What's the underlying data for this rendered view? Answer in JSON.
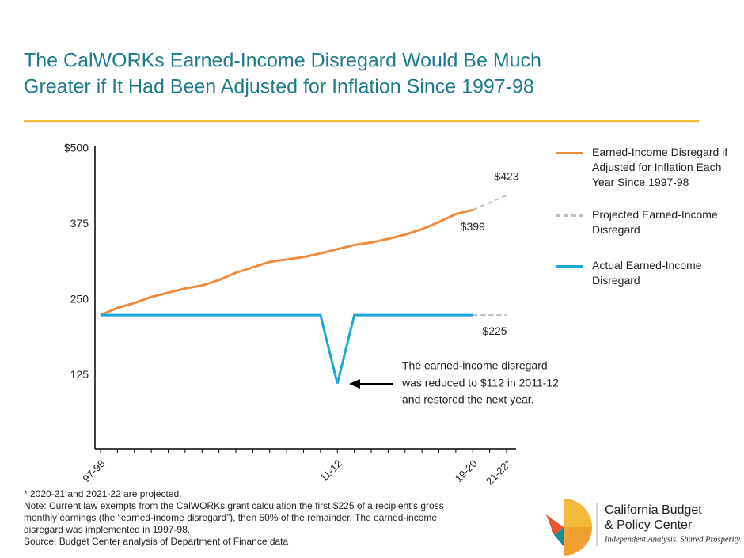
{
  "chart_data": {
    "type": "line",
    "title": [
      "The CalWORKs Earned-Income Disregard Would Be Much",
      "Greater if It Had Been Adjusted for Inflation Since 1997-98"
    ],
    "categories": [
      "97-98",
      null,
      null,
      null,
      null,
      null,
      null,
      null,
      null,
      null,
      null,
      null,
      null,
      null,
      "11-12",
      null,
      null,
      null,
      null,
      null,
      null,
      null,
      "19-20",
      null,
      "21-22*"
    ],
    "ylim": [
      0,
      500
    ],
    "yticks": [
      125,
      250,
      375,
      {
        "value": 500,
        "label": "$500"
      }
    ],
    "series": [
      {
        "name": "Earned-Income Disregard if Adjusted for Inflation Each Year Since 1997-98",
        "color": "#f08a3c",
        "dash": false,
        "values": [
          225,
          237,
          245,
          255,
          262,
          269,
          274,
          283,
          295,
          304,
          313,
          317,
          321,
          327,
          334,
          341,
          345,
          351,
          358,
          367,
          379,
          392,
          399,
          null,
          null
        ],
        "value_labels": [
          null,
          null,
          null,
          null,
          null,
          null,
          null,
          null,
          null,
          null,
          null,
          null,
          null,
          null,
          null,
          null,
          null,
          null,
          null,
          null,
          null,
          null,
          "$399",
          null,
          null
        ]
      },
      {
        "name": "Projected Earned-Income Disregard",
        "color": "#bfbfbf",
        "dash": true,
        "segments": [
          [
            null,
            null,
            null,
            null,
            null,
            null,
            null,
            null,
            null,
            null,
            null,
            null,
            null,
            null,
            null,
            null,
            null,
            null,
            null,
            null,
            null,
            null,
            399,
            411,
            423
          ],
          [
            null,
            null,
            null,
            null,
            null,
            null,
            null,
            null,
            null,
            null,
            null,
            null,
            null,
            null,
            null,
            null,
            null,
            null,
            null,
            null,
            null,
            null,
            225,
            225,
            225
          ]
        ],
        "segment_labels": [
          [
            null,
            null,
            null,
            null,
            null,
            null,
            null,
            null,
            null,
            null,
            null,
            null,
            null,
            null,
            null,
            null,
            null,
            null,
            null,
            null,
            null,
            null,
            null,
            null,
            "$423"
          ],
          [
            null,
            null,
            null,
            null,
            null,
            null,
            null,
            null,
            null,
            null,
            null,
            null,
            null,
            null,
            null,
            null,
            null,
            null,
            null,
            null,
            null,
            null,
            null,
            null,
            "$225"
          ]
        ]
      },
      {
        "name": "Actual Earned-Income Disregard",
        "color": "#1ba8d8",
        "dash": false,
        "values": [
          225,
          225,
          225,
          225,
          225,
          225,
          225,
          225,
          225,
          225,
          225,
          225,
          225,
          225,
          112,
          225,
          225,
          225,
          225,
          225,
          225,
          225,
          225,
          null,
          null
        ]
      }
    ],
    "annotation": [
      "The earned-income disregard",
      "was reduced to $112 in 2011-12",
      "and restored the next year."
    ],
    "notes": [
      "* 2020-21 and 2021-22 are projected.",
      "Note: Current law exempts from the CalWORKs grant calculation the first $225 of a recipient’s gross",
      "monthly earnings (the “earned-income disregard”), then 50% of the remainder. The earned-income",
      "disregard was implemented in 1997-98.",
      "Source: Budget Center analysis of Department of Finance data"
    ]
  },
  "logo": {
    "name": [
      "California Budget",
      "& Policy Center"
    ],
    "tagline": "Independent Analysis. Shared Prosperity."
  }
}
